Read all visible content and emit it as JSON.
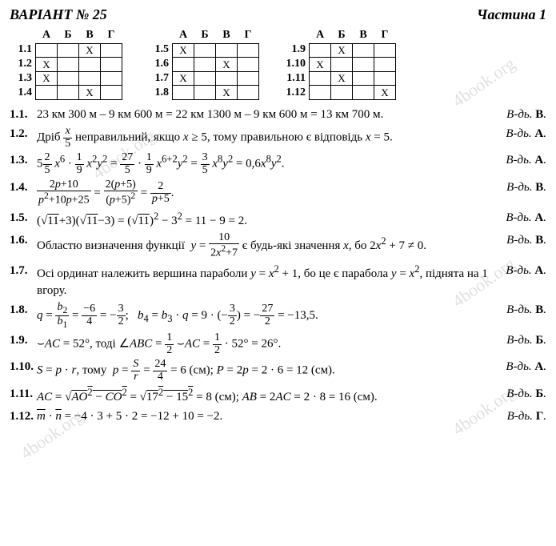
{
  "header": {
    "variant": "ВАРІАНТ № 25",
    "part": "Частина 1"
  },
  "cols": [
    "А",
    "Б",
    "В",
    "Г"
  ],
  "tables": [
    {
      "rows": [
        "1.1",
        "1.2",
        "1.3",
        "1.4"
      ],
      "marks": {
        "1.1": "В",
        "1.2": "А",
        "1.3": "А",
        "1.4": "В"
      }
    },
    {
      "rows": [
        "1.5",
        "1.6",
        "1.7",
        "1.8"
      ],
      "marks": {
        "1.5": "А",
        "1.6": "В",
        "1.7": "А",
        "1.8": "В"
      }
    },
    {
      "rows": [
        "1.9",
        "1.10",
        "1.11",
        "1.12"
      ],
      "marks": {
        "1.9": "Б",
        "1.10": "А",
        "1.11": "Б",
        "1.12": "Г"
      }
    }
  ],
  "items": [
    {
      "n": "1.1.",
      "body": "23 км 300 м – 9 км 600 м = 22 км 1300 м – 9 км 600 м = 13 км 700 м.",
      "ans": "В"
    },
    {
      "n": "1.2.",
      "body": "Дріб <span class='frac'><span class='n'><i>x</i></span><span class='d'>5</span></span> неправильний, якщо <i>x</i> ≥ 5, тому правильною є відповідь <i>x</i> = 5.",
      "ans": "А"
    },
    {
      "n": "1.3.",
      "body": "5<span class='frac'><span class='n'>2</span><span class='d'>5</span></span> <i>x</i><sup>6</sup> · <span class='frac'><span class='n'>1</span><span class='d'>9</span></span> <i>x</i><sup>2</sup><i>y</i><sup>2</sup> = <span class='frac'><span class='n'>27</span><span class='d'>5</span></span> · <span class='frac'><span class='n'>1</span><span class='d'>9</span></span> <i>x</i><sup>6+2</sup><i>y</i><sup>2</sup> = <span class='frac'><span class='n'>3</span><span class='d'>5</span></span> <i>x</i><sup>8</sup><i>y</i><sup>2</sup> = 0,6<i>x</i><sup>8</sup><i>y</i><sup>2</sup>.",
      "ans": "А"
    },
    {
      "n": "1.4.",
      "body": "<span class='frac'><span class='n'>2<i>p</i>+10</span><span class='d'><i>p</i><sup>2</sup>+10<i>p</i>+25</span></span> = <span class='frac'><span class='n'>2(<i>p</i>+5)</span><span class='d'>(<i>p</i>+5)<sup>2</sup></span></span> = <span class='frac'><span class='n'>2</span><span class='d'><i>p</i>+5</span></span>.",
      "ans": "В"
    },
    {
      "n": "1.5.",
      "body": "(√<span class='sqrt'>11</span>+3)(√<span class='sqrt'>11</span>−3) = (√<span class='sqrt'>11</span>)<sup>2</sup> − 3<sup>2</sup> = 11 − 9 = 2.",
      "ans": "А"
    },
    {
      "n": "1.6.",
      "body": "Областю визначення функції &nbsp;<i>y</i> = <span class='frac'><span class='n'>10</span><span class='d'>2<i>x</i><sup>2</sup>+7</span></span> є будь-які значення <i>x</i>, бо 2<i>x</i><sup>2</sup> + 7 ≠ 0.",
      "ans": "В"
    },
    {
      "n": "1.7.",
      "body": "Осі ординат належить вершина параболи <i>y</i> = <i>x</i><sup>2</sup> + 1, бо це є парабола <i>y</i> = <i>x</i><sup>2</sup>, піднята на 1 вгору.",
      "ans": "А"
    },
    {
      "n": "1.8.",
      "body": "<i>q</i> = <span class='frac'><span class='n'><i>b</i><sub>2</sub></span><span class='d'><i>b</i><sub>1</sub></span></span> = <span class='frac'><span class='n'>−6</span><span class='d'>4</span></span> = −<span class='frac'><span class='n'>3</span><span class='d'>2</span></span>; &nbsp; <i>b</i><sub>4</sub> = <i>b</i><sub>3</sub> · <i>q</i> = 9 · (−<span class='frac'><span class='n'>3</span><span class='d'>2</span></span>) = −<span class='frac'><span class='n'>27</span><span class='d'>2</span></span> = −13,5.",
      "ans": "В"
    },
    {
      "n": "1.9.",
      "body": "⌣<i>AC</i> = 52°, тоді ∠<i>ABC</i> = <span class='frac'><span class='n'>1</span><span class='d'>2</span></span> ⌣<i>AC</i> = <span class='frac'><span class='n'>1</span><span class='d'>2</span></span> · 52° = 26°.",
      "ans": "Б"
    },
    {
      "n": "1.10.",
      "body": "<i>S</i> = <i>p</i> · <i>r</i>, тому &nbsp;<i>p</i> = <span class='frac'><span class='n'><i>S</i></span><span class='d'><i>r</i></span></span> = <span class='frac'><span class='n'>24</span><span class='d'>4</span></span> = 6 (см); <i>P</i> = 2<i>p</i> = 2 · 6 = 12 (см).",
      "ans": "А"
    },
    {
      "n": "1.11.",
      "body": "<i>AC</i> = √<span class='sqrt'><i>AO</i><sup>2</sup> − <i>CO</i><sup>2</sup></span> = √<span class='sqrt'>17<sup>2</sup> − 15<sup>2</sup></span> = 8 (см); <i>AB</i> = 2<i>AC</i> = 2 · 8 = 16 (см).",
      "ans": "Б"
    },
    {
      "n": "1.12.",
      "body": "<span style='text-decoration:overline'><i>m</i></span> · <span style='text-decoration:overline'><i>n</i></span> = −4 · 3 + 5 · 2 = −12 + 10 = −2.",
      "ans": "Г"
    }
  ],
  "answer_prefix": "В-дь. ",
  "watermarks": [
    "4book.org",
    "4book.org",
    "4book.org",
    "4book.org",
    "4book.org"
  ]
}
